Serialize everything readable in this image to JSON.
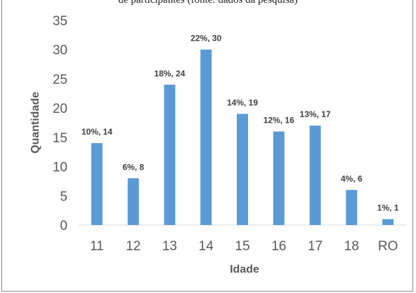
{
  "caption_fragment": "de participantes (fonte: dados da pesquisa)",
  "chart_data": {
    "type": "bar",
    "title": "",
    "xlabel": "Idade",
    "ylabel": "Quantidade",
    "categories": [
      "11",
      "12",
      "13",
      "14",
      "15",
      "16",
      "17",
      "18",
      "RO"
    ],
    "values": [
      14,
      8,
      24,
      30,
      19,
      16,
      17,
      6,
      1
    ],
    "data_labels": [
      "10%, 14",
      "6%, 8",
      "18%, 24",
      "22%, 30",
      "14%, 19",
      "12%, 16",
      "13%, 17",
      "4%, 6",
      "1%, 1"
    ],
    "ylim": [
      0,
      35
    ],
    "yticks": [
      "0",
      "5",
      "10",
      "15",
      "20",
      "25",
      "30",
      "35"
    ],
    "grid": false,
    "legend": "none",
    "bar_color": "#5b9bd5"
  }
}
